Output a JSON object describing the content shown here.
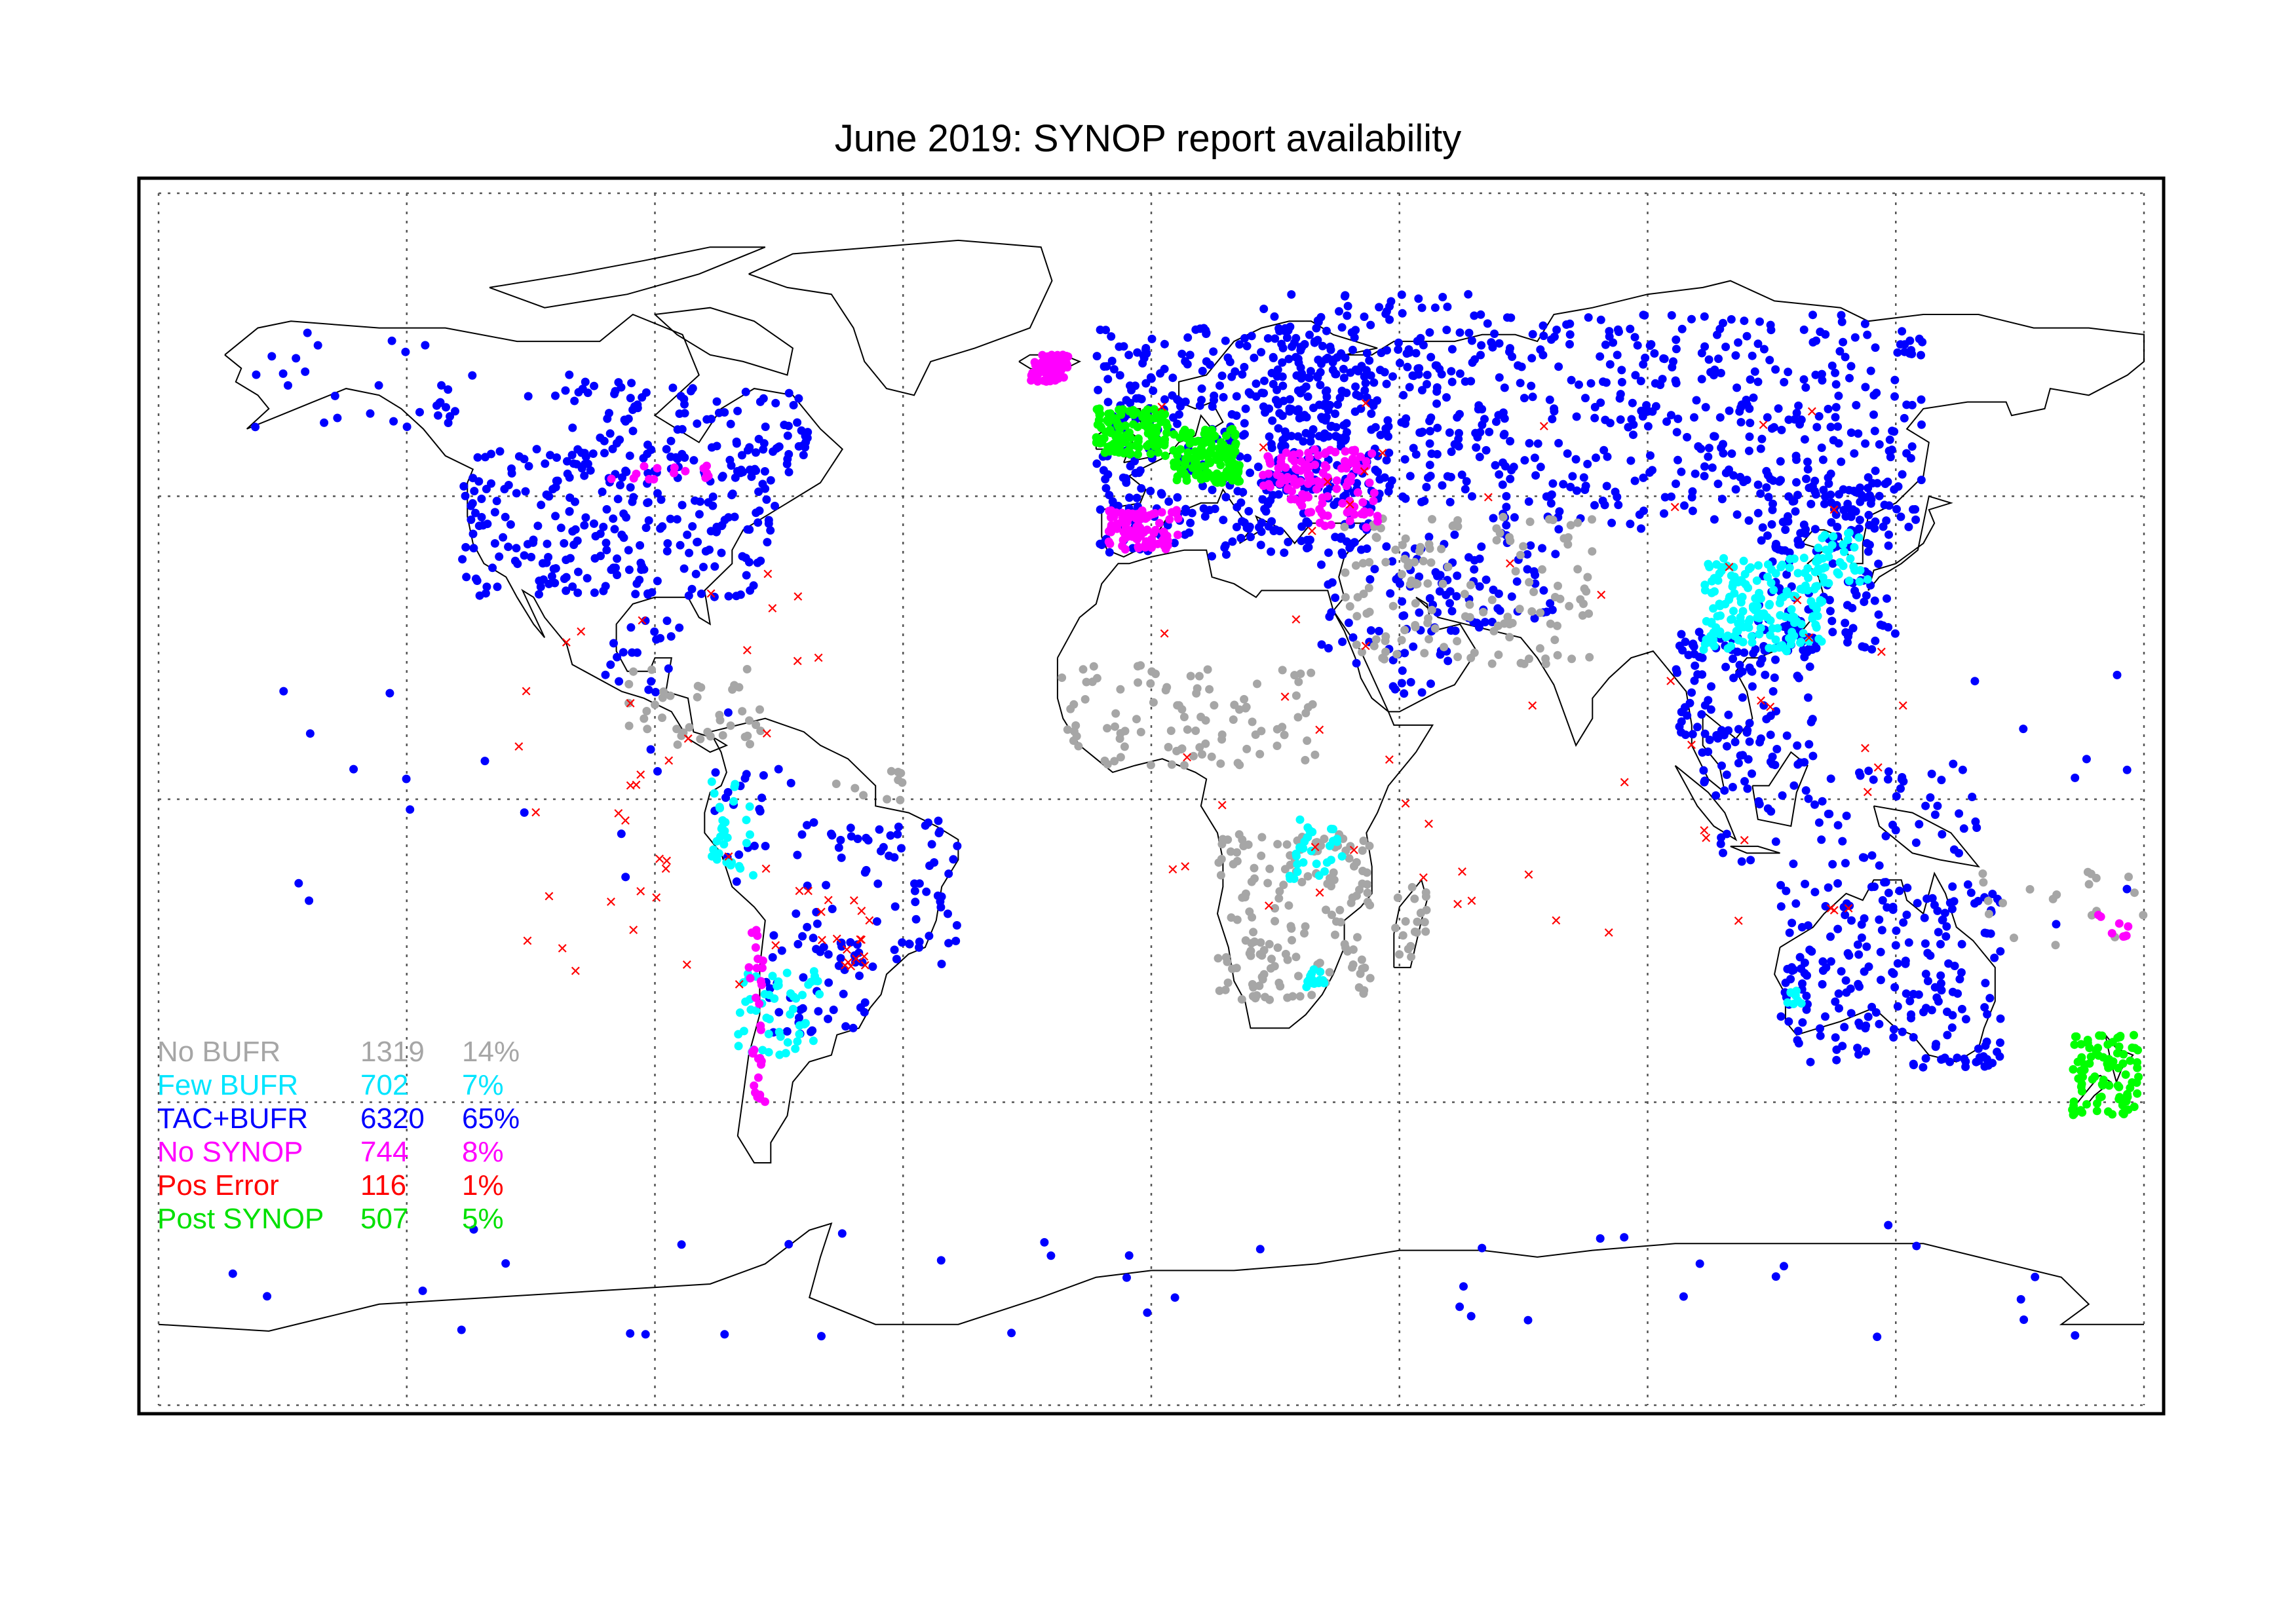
{
  "title": "June 2019: SYNOP report availability",
  "legend": [
    {
      "label": "No BUFR",
      "count": "1319",
      "percent": "14%",
      "color": "#a6a6a6"
    },
    {
      "label": "Few BUFR",
      "count": "702",
      "percent": "7%",
      "color": "#00ffff"
    },
    {
      "label": "TAC+BUFR",
      "count": "6320",
      "percent": "65%",
      "color": "#0000ff"
    },
    {
      "label": "No SYNOP",
      "count": "744",
      "percent": "8%",
      "color": "#ff00ff"
    },
    {
      "label": "Pos Error",
      "count": "116",
      "percent": "1%",
      "color": "#ff0000"
    },
    {
      "label": "Post SYNOP",
      "count": "507",
      "percent": "5%",
      "color": "#00ff00"
    }
  ],
  "map": {
    "projection": "equirectangular",
    "lon_range": [
      -180,
      180
    ],
    "lat_range": [
      -90,
      90
    ],
    "graticule_spacing_deg": 45,
    "grid": true,
    "coastlines": true
  }
}
